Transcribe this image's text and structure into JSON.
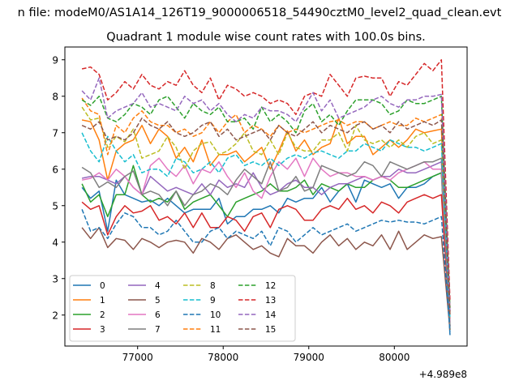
{
  "suptitle": "n file: modeM0/AS1A14_126T19_9000006518_54490cztM0_level2_quad_clean.evt",
  "chart_data": {
    "type": "line",
    "title": "Quadrant 1 module wise count rates with 100.0s bins.",
    "xlabel": "",
    "ylabel": "",
    "x_offset_label": "+4.989e8",
    "xlim": [
      76150,
      80850
    ],
    "ylim": [
      1.15,
      9.35
    ],
    "xticks": [
      77000,
      78000,
      79000,
      80000
    ],
    "yticks": [
      2,
      3,
      4,
      5,
      6,
      7,
      8,
      9
    ],
    "x": [
      76350,
      76450,
      76550,
      76650,
      76750,
      76850,
      76950,
      77050,
      77150,
      77250,
      77350,
      77450,
      77550,
      77650,
      77750,
      77850,
      77950,
      78050,
      78150,
      78250,
      78350,
      78450,
      78550,
      78650,
      78750,
      78850,
      78950,
      79050,
      79150,
      79250,
      79350,
      79450,
      79550,
      79650,
      79750,
      79850,
      79950,
      80050,
      80150,
      80250,
      80350,
      80450,
      80550,
      80650
    ],
    "legend_position": "lower-left",
    "series": [
      {
        "name": "0",
        "color": "#1f77b4",
        "dash": "solid",
        "values": [
          5.5,
          5.2,
          5.4,
          4.3,
          5.7,
          5.3,
          5.2,
          5.1,
          5.15,
          5.0,
          5.2,
          5.0,
          4.8,
          4.9,
          4.9,
          4.9,
          5.2,
          4.5,
          4.7,
          4.7,
          4.9,
          4.9,
          5.0,
          4.8,
          5.2,
          5.1,
          5.2,
          5.2,
          5.5,
          5.1,
          5.4,
          5.6,
          5.1,
          5.7,
          5.6,
          5.5,
          5.6,
          5.2,
          5.5,
          5.5,
          5.6,
          5.8,
          5.9,
          1.45
        ]
      },
      {
        "name": "1",
        "color": "#ff7f0e",
        "dash": "solid",
        "values": [
          7.35,
          7.3,
          6.8,
          5.7,
          6.5,
          6.7,
          6.8,
          7.2,
          6.7,
          7.1,
          6.9,
          6.3,
          6.6,
          6.2,
          6.8,
          6.1,
          6.4,
          6.4,
          6.5,
          6.2,
          6.4,
          6.6,
          6.0,
          6.5,
          7.05,
          6.5,
          6.8,
          6.4,
          6.6,
          6.7,
          7.4,
          6.7,
          6.9,
          6.9,
          6.4,
          6.6,
          6.8,
          6.6,
          6.8,
          7.1,
          7.0,
          7.05,
          7.1,
          1.9
        ]
      },
      {
        "name": "2",
        "color": "#2ca02c",
        "dash": "solid",
        "values": [
          5.6,
          5.1,
          5.3,
          4.7,
          5.3,
          5.3,
          6.1,
          5.3,
          5.1,
          5.2,
          5.1,
          5.4,
          4.9,
          5.1,
          5.2,
          5.3,
          5.0,
          4.7,
          5.1,
          5.2,
          5.3,
          5.4,
          5.6,
          5.4,
          5.4,
          5.5,
          5.7,
          5.3,
          5.6,
          5.5,
          5.4,
          5.6,
          5.5,
          5.5,
          5.7,
          5.8,
          5.7,
          5.5,
          5.5,
          5.6,
          5.7,
          5.8,
          5.9,
          1.6
        ]
      },
      {
        "name": "3",
        "color": "#d62728",
        "dash": "solid",
        "values": [
          5.1,
          4.9,
          5.0,
          4.2,
          4.7,
          5.0,
          4.8,
          4.85,
          5.0,
          4.6,
          4.7,
          4.5,
          4.8,
          4.4,
          4.8,
          4.4,
          4.4,
          4.7,
          4.6,
          4.3,
          4.7,
          4.8,
          4.4,
          4.9,
          5.0,
          4.9,
          4.6,
          4.6,
          4.9,
          5.0,
          4.9,
          5.2,
          4.9,
          5.0,
          4.8,
          5.1,
          5.0,
          4.8,
          5.1,
          5.2,
          5.3,
          5.2,
          5.3,
          1.7
        ]
      },
      {
        "name": "4",
        "color": "#9467bd",
        "dash": "solid",
        "values": [
          5.75,
          5.8,
          5.8,
          5.7,
          5.6,
          5.8,
          5.5,
          5.3,
          5.8,
          5.6,
          5.4,
          5.5,
          5.4,
          5.3,
          5.6,
          5.3,
          5.7,
          5.5,
          5.6,
          5.5,
          5.9,
          5.5,
          5.3,
          5.4,
          5.6,
          5.7,
          5.5,
          5.5,
          5.3,
          5.5,
          5.6,
          5.6,
          5.7,
          5.8,
          5.7,
          5.8,
          5.8,
          6.0,
          5.9,
          5.9,
          6.0,
          6.1,
          6.2,
          1.7
        ]
      },
      {
        "name": "5",
        "color": "#8c564b",
        "dash": "solid",
        "values": [
          4.4,
          4.1,
          4.4,
          3.85,
          4.1,
          4.05,
          3.8,
          4.1,
          4.0,
          3.85,
          4.0,
          4.05,
          4.0,
          3.7,
          4.1,
          4.0,
          3.8,
          4.1,
          4.2,
          4.0,
          3.8,
          3.9,
          3.7,
          3.6,
          4.1,
          3.9,
          3.9,
          3.7,
          4.0,
          4.2,
          3.9,
          4.1,
          3.8,
          4.0,
          3.9,
          4.2,
          3.8,
          4.3,
          3.8,
          4.0,
          4.2,
          4.1,
          4.15,
          1.6
        ]
      },
      {
        "name": "6",
        "color": "#e377c2",
        "dash": "solid",
        "values": [
          5.7,
          5.75,
          5.9,
          5.7,
          6.0,
          5.8,
          5.5,
          5.3,
          6.1,
          6.3,
          6.0,
          5.8,
          6.1,
          5.6,
          6.0,
          5.9,
          6.2,
          5.8,
          5.5,
          5.9,
          5.4,
          5.2,
          5.8,
          6.2,
          6.0,
          6.3,
          5.8,
          6.3,
          6.0,
          5.8,
          5.9,
          5.9,
          5.8,
          5.8,
          5.7,
          5.8,
          5.7,
          5.9,
          6.0,
          6.1,
          6.2,
          6.0,
          6.0,
          1.8
        ]
      },
      {
        "name": "7",
        "color": "#7f7f7f",
        "dash": "solid",
        "values": [
          6.05,
          5.9,
          5.5,
          5.65,
          5.5,
          5.8,
          5.95,
          5.3,
          5.4,
          5.3,
          5.0,
          5.4,
          5.0,
          5.3,
          5.4,
          5.6,
          5.5,
          5.3,
          5.7,
          6.0,
          5.8,
          5.6,
          6.2,
          5.4,
          5.5,
          5.8,
          5.4,
          5.5,
          6.1,
          6.0,
          5.9,
          5.8,
          5.9,
          6.2,
          6.1,
          5.8,
          6.2,
          6.1,
          6.0,
          6.1,
          6.2,
          6.2,
          6.3,
          1.7
        ]
      },
      {
        "name": "8",
        "color": "#bcbd22",
        "dash": "dashed",
        "values": [
          7.7,
          7.35,
          7.4,
          6.6,
          6.9,
          6.75,
          7.1,
          6.3,
          6.4,
          6.5,
          6.9,
          6.6,
          6.0,
          6.5,
          6.7,
          6.75,
          6.4,
          6.5,
          6.7,
          7.0,
          6.5,
          6.4,
          6.8,
          6.4,
          7.0,
          6.6,
          6.5,
          6.5,
          6.8,
          6.8,
          7.0,
          6.5,
          7.2,
          6.8,
          6.7,
          6.8,
          6.6,
          6.8,
          6.6,
          6.9,
          7.0,
          6.7,
          6.8,
          2.0
        ]
      },
      {
        "name": "9",
        "color": "#17becf",
        "dash": "dashed",
        "values": [
          7.0,
          6.5,
          6.2,
          6.9,
          6.5,
          6.2,
          6.4,
          5.9,
          6.0,
          6.0,
          5.8,
          6.3,
          6.2,
          5.9,
          6.0,
          6.2,
          5.9,
          6.3,
          6.4,
          6.1,
          6.2,
          6.1,
          6.3,
          6.1,
          6.3,
          6.4,
          6.3,
          6.45,
          6.5,
          6.4,
          6.3,
          6.5,
          6.5,
          6.7,
          6.6,
          6.5,
          6.8,
          6.7,
          6.6,
          6.6,
          6.5,
          6.6,
          6.7,
          1.9
        ]
      },
      {
        "name": "10",
        "color": "#1f77b4",
        "dash": "dashed",
        "values": [
          4.9,
          4.3,
          4.4,
          4.1,
          4.5,
          4.8,
          4.7,
          4.4,
          4.4,
          4.2,
          4.3,
          4.6,
          4.3,
          4.0,
          4.0,
          4.3,
          4.4,
          4.1,
          4.3,
          4.2,
          4.1,
          4.3,
          3.9,
          4.4,
          4.3,
          4.0,
          4.2,
          4.4,
          4.2,
          4.3,
          4.4,
          4.5,
          4.3,
          4.4,
          4.5,
          4.6,
          4.55,
          4.6,
          4.55,
          4.55,
          4.5,
          4.6,
          4.7,
          1.55
        ]
      },
      {
        "name": "11",
        "color": "#ff7f0e",
        "dash": "dashed",
        "values": [
          7.95,
          7.6,
          7.5,
          6.4,
          7.2,
          7.0,
          7.4,
          7.6,
          7.3,
          7.2,
          7.2,
          7.0,
          7.1,
          6.9,
          7.0,
          7.3,
          7.0,
          7.3,
          7.5,
          7.0,
          7.2,
          7.1,
          6.9,
          7.2,
          7.0,
          7.1,
          7.0,
          7.1,
          7.2,
          7.3,
          7.35,
          7.2,
          7.3,
          7.3,
          7.1,
          7.2,
          7.3,
          7.2,
          7.2,
          7.4,
          7.3,
          7.4,
          7.5,
          2.1
        ]
      },
      {
        "name": "12",
        "color": "#2ca02c",
        "dash": "dashed",
        "values": [
          7.9,
          7.75,
          8.0,
          7.4,
          7.3,
          7.5,
          7.8,
          7.7,
          7.5,
          7.9,
          8.0,
          7.7,
          7.4,
          7.8,
          7.6,
          7.5,
          7.7,
          7.3,
          7.3,
          7.4,
          7.1,
          7.7,
          7.3,
          7.5,
          7.3,
          7.0,
          7.6,
          7.8,
          7.3,
          7.5,
          7.2,
          7.6,
          7.9,
          7.9,
          7.9,
          7.8,
          7.5,
          7.6,
          7.9,
          7.8,
          7.8,
          7.9,
          8.0,
          2.2
        ]
      },
      {
        "name": "13",
        "color": "#d62728",
        "dash": "dashed",
        "values": [
          8.75,
          8.8,
          8.6,
          7.9,
          8.1,
          8.4,
          8.2,
          8.6,
          8.3,
          8.2,
          8.4,
          8.3,
          8.7,
          8.3,
          8.1,
          8.5,
          7.9,
          8.3,
          8.2,
          8.0,
          8.1,
          8.0,
          7.8,
          7.9,
          7.8,
          7.5,
          8.0,
          8.1,
          8.0,
          8.6,
          8.3,
          8.0,
          8.5,
          8.55,
          8.5,
          8.5,
          8.0,
          8.4,
          8.3,
          8.6,
          8.9,
          8.7,
          9.0,
          2.4
        ]
      },
      {
        "name": "14",
        "color": "#9467bd",
        "dash": "dashed",
        "values": [
          8.15,
          7.9,
          8.5,
          7.4,
          7.6,
          7.7,
          7.8,
          8.1,
          7.7,
          7.8,
          7.7,
          7.6,
          8.0,
          7.8,
          7.9,
          7.6,
          7.8,
          7.5,
          7.3,
          7.5,
          7.4,
          7.7,
          7.6,
          7.6,
          7.5,
          7.3,
          7.7,
          8.1,
          7.6,
          7.9,
          7.4,
          7.5,
          7.6,
          7.7,
          7.9,
          8.0,
          7.8,
          7.7,
          7.9,
          7.9,
          8.0,
          8.0,
          8.05,
          2.1
        ]
      },
      {
        "name": "15",
        "color": "#8c564b",
        "dash": "dashed",
        "values": [
          7.2,
          7.1,
          7.3,
          6.8,
          6.9,
          6.8,
          7.0,
          7.4,
          7.2,
          7.1,
          7.3,
          7.0,
          6.9,
          7.0,
          7.2,
          7.3,
          6.9,
          7.1,
          6.8,
          6.9,
          7.0,
          7.1,
          6.8,
          7.2,
          7.0,
          6.9,
          7.1,
          7.3,
          7.0,
          7.2,
          7.1,
          7.0,
          7.2,
          7.3,
          7.1,
          7.2,
          7.0,
          7.3,
          7.1,
          7.2,
          7.3,
          7.2,
          7.35,
          2.0
        ]
      }
    ]
  }
}
